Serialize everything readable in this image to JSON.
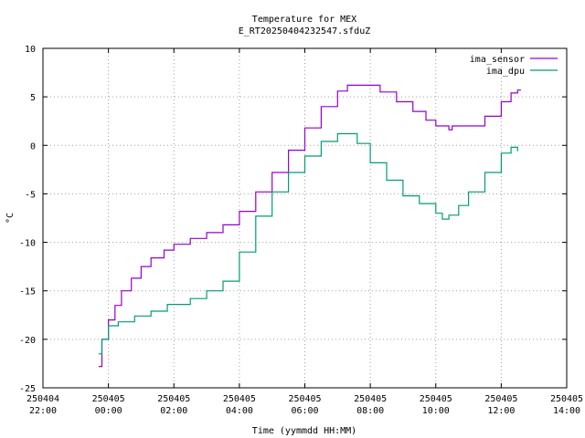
{
  "chart_data": {
    "type": "line",
    "title": "Temperature for MEX",
    "subtitle": "E_RT20250404232547.sfduZ",
    "xlabel": "Time (yymmdd HH:MM)",
    "ylabel": "°C",
    "ylim": [
      -25,
      10
    ],
    "yticks": [
      -25,
      -20,
      -15,
      -10,
      -5,
      0,
      5,
      10
    ],
    "xlim_hours": [
      -2,
      14
    ],
    "xticks": [
      {
        "t": -2,
        "date": "250404",
        "time": "22:00"
      },
      {
        "t": 0,
        "date": "250405",
        "time": "00:00"
      },
      {
        "t": 2,
        "date": "250405",
        "time": "02:00"
      },
      {
        "t": 4,
        "date": "250405",
        "time": "04:00"
      },
      {
        "t": 6,
        "date": "250405",
        "time": "06:00"
      },
      {
        "t": 8,
        "date": "250405",
        "time": "08:00"
      },
      {
        "t": 10,
        "date": "250405",
        "time": "10:00"
      },
      {
        "t": 12,
        "date": "250405",
        "time": "12:00"
      },
      {
        "t": 14,
        "date": "250405",
        "time": "14:00"
      }
    ],
    "grid": true,
    "legend_position": "top-right",
    "series": [
      {
        "name": "ima_sensor",
        "color": "#9400d3",
        "points": [
          [
            -0.3,
            -22.8
          ],
          [
            -0.2,
            -20.0
          ],
          [
            0.0,
            -18.0
          ],
          [
            0.2,
            -16.5
          ],
          [
            0.4,
            -15.0
          ],
          [
            0.7,
            -13.7
          ],
          [
            1.0,
            -12.5
          ],
          [
            1.3,
            -11.6
          ],
          [
            1.7,
            -10.8
          ],
          [
            2.0,
            -10.2
          ],
          [
            2.5,
            -9.6
          ],
          [
            3.0,
            -9.0
          ],
          [
            3.5,
            -8.2
          ],
          [
            4.0,
            -6.8
          ],
          [
            4.5,
            -4.8
          ],
          [
            5.0,
            -2.8
          ],
          [
            5.5,
            -0.5
          ],
          [
            6.0,
            1.8
          ],
          [
            6.5,
            4.0
          ],
          [
            7.0,
            5.6
          ],
          [
            7.3,
            6.2
          ],
          [
            7.9,
            6.2
          ],
          [
            8.3,
            5.5
          ],
          [
            8.8,
            4.5
          ],
          [
            9.3,
            3.5
          ],
          [
            9.7,
            2.6
          ],
          [
            10.0,
            2.0
          ],
          [
            10.3,
            2.0
          ],
          [
            10.4,
            1.6
          ],
          [
            10.5,
            2.0
          ],
          [
            11.0,
            2.0
          ],
          [
            11.5,
            3.0
          ],
          [
            12.0,
            4.5
          ],
          [
            12.3,
            5.4
          ],
          [
            12.5,
            5.7
          ],
          [
            12.6,
            5.7
          ]
        ]
      },
      {
        "name": "ima_dpu",
        "color": "#009e73",
        "points": [
          [
            -0.3,
            -21.5
          ],
          [
            -0.2,
            -20.0
          ],
          [
            0.0,
            -18.6
          ],
          [
            0.3,
            -18.2
          ],
          [
            0.8,
            -17.6
          ],
          [
            1.3,
            -17.1
          ],
          [
            1.8,
            -16.4
          ],
          [
            2.5,
            -15.8
          ],
          [
            3.0,
            -15.0
          ],
          [
            3.5,
            -14.0
          ],
          [
            4.0,
            -11.0
          ],
          [
            4.5,
            -7.3
          ],
          [
            5.0,
            -4.8
          ],
          [
            5.5,
            -2.8
          ],
          [
            6.0,
            -1.1
          ],
          [
            6.5,
            0.4
          ],
          [
            7.0,
            1.2
          ],
          [
            7.3,
            1.2
          ],
          [
            7.6,
            0.2
          ],
          [
            8.0,
            -1.8
          ],
          [
            8.5,
            -3.6
          ],
          [
            9.0,
            -5.2
          ],
          [
            9.5,
            -6.0
          ],
          [
            10.0,
            -7.0
          ],
          [
            10.2,
            -7.6
          ],
          [
            10.4,
            -7.2
          ],
          [
            10.7,
            -6.2
          ],
          [
            11.0,
            -4.8
          ],
          [
            11.5,
            -2.8
          ],
          [
            12.0,
            -0.8
          ],
          [
            12.3,
            -0.2
          ],
          [
            12.5,
            -0.6
          ]
        ]
      }
    ]
  }
}
